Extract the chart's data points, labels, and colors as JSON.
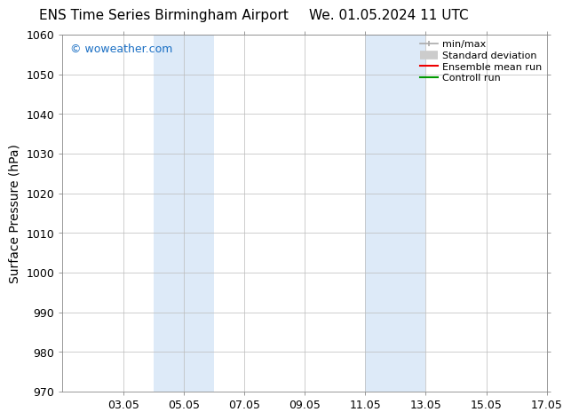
{
  "title_left": "ENS Time Series Birmingham Airport",
  "title_right": "We. 01.05.2024 11 UTC",
  "ylabel": "Surface Pressure (hPa)",
  "ylim": [
    970,
    1060
  ],
  "yticks": [
    970,
    980,
    990,
    1000,
    1010,
    1020,
    1030,
    1040,
    1050,
    1060
  ],
  "xlim": [
    1.0,
    17.0
  ],
  "xtick_labels": [
    "03.05",
    "05.05",
    "07.05",
    "09.05",
    "11.05",
    "13.05",
    "15.05",
    "17.05"
  ],
  "xtick_positions": [
    3,
    5,
    7,
    9,
    11,
    13,
    15,
    17
  ],
  "shaded_bands": [
    {
      "x_start": 4.0,
      "x_end": 6.0,
      "color": "#ddeaf8"
    },
    {
      "x_start": 11.0,
      "x_end": 13.0,
      "color": "#ddeaf8"
    }
  ],
  "watermark_text": "© woweather.com",
  "watermark_color": "#1a6fc4",
  "background_color": "#ffffff",
  "plot_bg_color": "#ffffff",
  "grid_color": "#bbbbbb",
  "title_fontsize": 11,
  "tick_label_fontsize": 9,
  "ylabel_fontsize": 10,
  "legend_fontsize": 8
}
